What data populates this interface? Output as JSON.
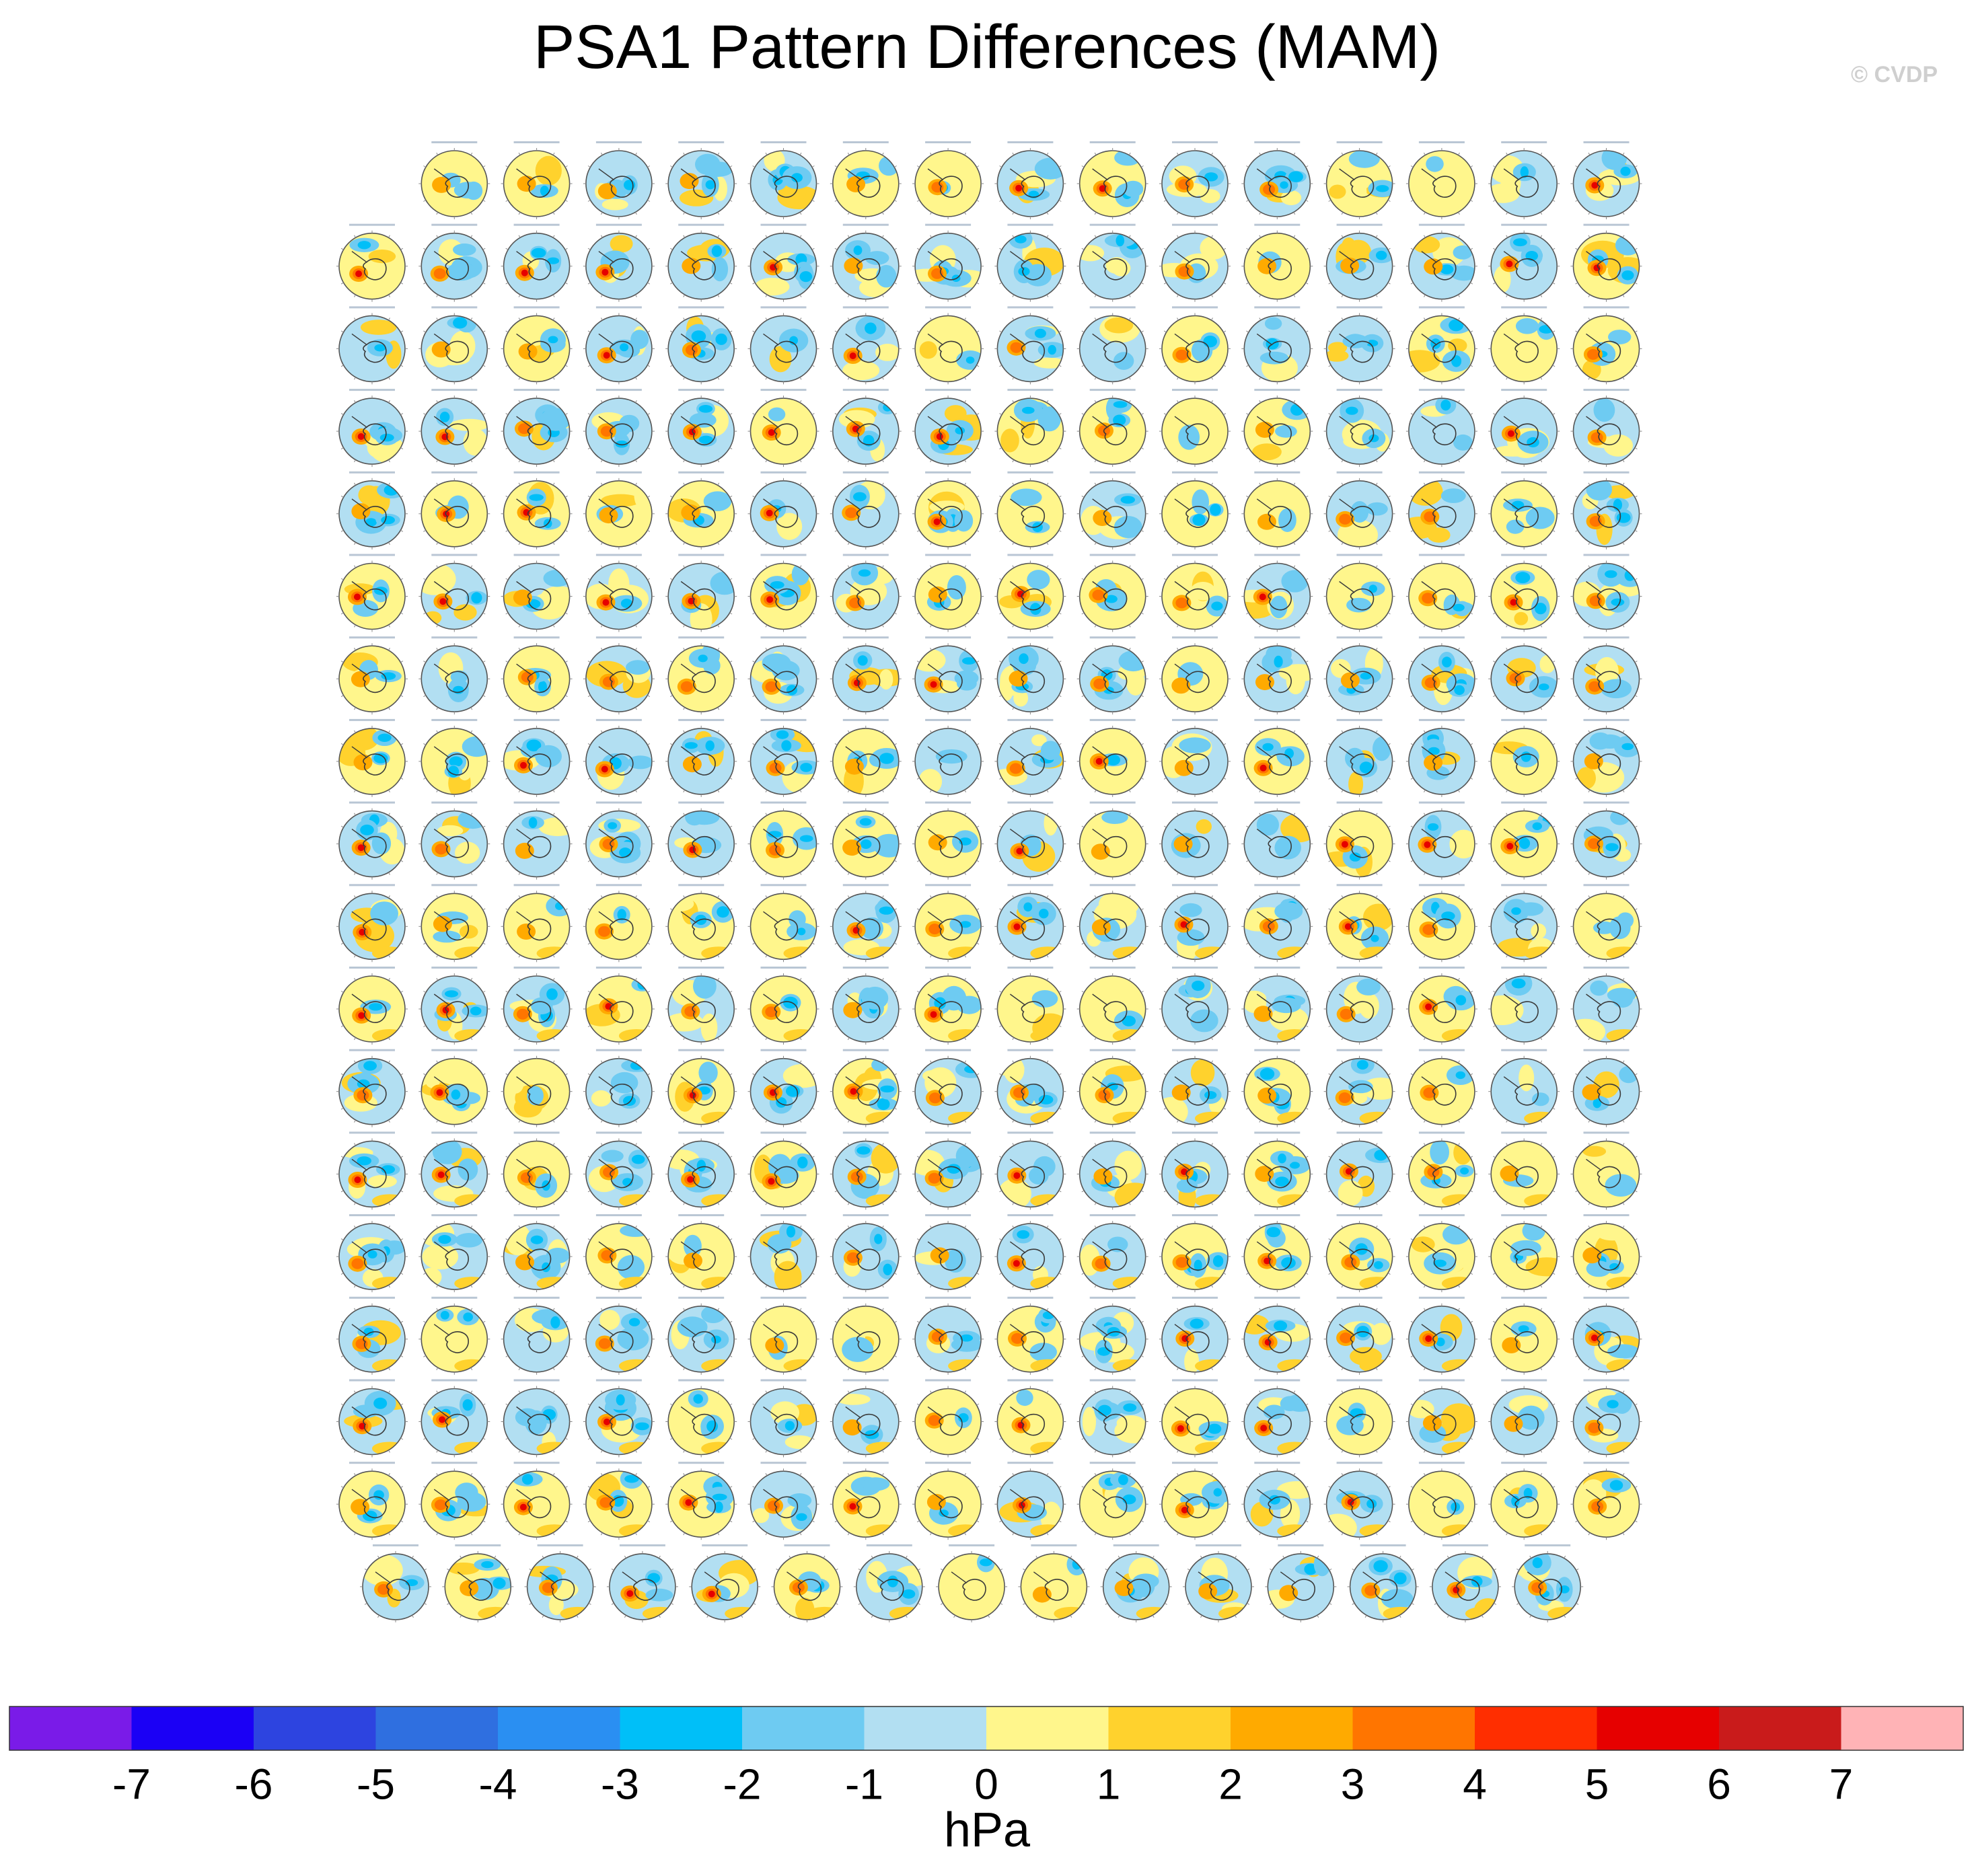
{
  "title": "PSA1 Pattern Differences (MAM)",
  "watermark": "© CVDP",
  "unit": "hPa",
  "chart_data": {
    "type": "heatmap",
    "title": "PSA1 Pattern Differences (MAM)",
    "description": "Grid of southern-hemisphere polar stereographic sea-level-pressure pattern-difference maps (one per model simulation); panel subtitles too small to read.",
    "grid": {
      "rows": 18,
      "columns": 16,
      "panels_per_row": [
        15,
        16,
        16,
        16,
        16,
        16,
        16,
        16,
        16,
        16,
        16,
        16,
        16,
        16,
        16,
        16,
        16,
        15
      ],
      "first_row_alignment": "right",
      "last_row_alignment": "center"
    },
    "colorbar": {
      "label": "hPa",
      "levels": [
        -7,
        -6,
        -5,
        -4,
        -3,
        -2,
        -1,
        0,
        1,
        2,
        3,
        4,
        5,
        6,
        7
      ],
      "colors": [
        "#7a1be8",
        "#1b00f5",
        "#2d44e0",
        "#2f6fe0",
        "#2a8ff2",
        "#00bff8",
        "#6ecbf2",
        "#b2dff2",
        "#fff68c",
        "#ffd22d",
        "#ffaa00",
        "#ff7500",
        "#ff2e00",
        "#e60000",
        "#c91b1b",
        "#ffb3b6"
      ]
    }
  }
}
